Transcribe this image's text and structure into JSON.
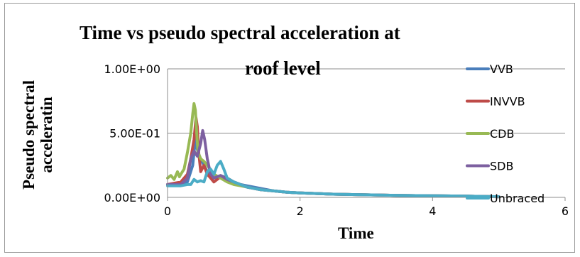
{
  "chart_data": {
    "type": "line",
    "title_line1": "Time vs pseudo spectral acceleration at",
    "title_line2": "roof level",
    "xlabel": "Time",
    "ylabel_line1": "Pseudo spectral",
    "ylabel_line2": "acceleratin",
    "xlim": [
      0,
      6
    ],
    "ylim": [
      0,
      1
    ],
    "x_ticks": [
      0,
      2,
      4,
      6
    ],
    "x_tick_labels": [
      "0",
      "2",
      "4",
      "6"
    ],
    "y_ticks": [
      0,
      0.5,
      1
    ],
    "y_tick_labels": [
      "0.00E+00",
      "5.00E-01",
      "1.00E+00"
    ],
    "grid": "horizontal",
    "legend_position": "right",
    "series": [
      {
        "name": "VVB",
        "color": "#4a7ebb",
        "x": [
          0,
          0.2,
          0.3,
          0.38,
          0.42,
          0.46,
          0.5,
          0.55,
          0.6,
          0.7,
          0.8,
          0.9,
          1.0,
          1.1,
          1.2,
          1.4,
          1.6,
          1.8,
          2.0,
          2.5,
          3.0,
          3.5,
          4.0,
          4.5,
          5.0
        ],
        "y": [
          0.1,
          0.1,
          0.12,
          0.25,
          0.45,
          0.35,
          0.3,
          0.25,
          0.2,
          0.15,
          0.17,
          0.15,
          0.12,
          0.1,
          0.09,
          0.07,
          0.05,
          0.04,
          0.035,
          0.025,
          0.02,
          0.015,
          0.012,
          0.01,
          0.005
        ]
      },
      {
        "name": "INVVB",
        "color": "#be4b48",
        "x": [
          0,
          0.2,
          0.3,
          0.35,
          0.4,
          0.43,
          0.45,
          0.47,
          0.5,
          0.55,
          0.6,
          0.65,
          0.7,
          0.8,
          0.9,
          1.0,
          1.1,
          1.2,
          1.4,
          1.6,
          1.8,
          2.0,
          2.5,
          3.0,
          3.5,
          4.0,
          4.5,
          5.0
        ],
        "y": [
          0.1,
          0.12,
          0.18,
          0.3,
          0.45,
          0.62,
          0.55,
          0.35,
          0.2,
          0.25,
          0.18,
          0.15,
          0.12,
          0.16,
          0.15,
          0.12,
          0.1,
          0.08,
          0.06,
          0.05,
          0.04,
          0.035,
          0.025,
          0.02,
          0.015,
          0.012,
          0.01,
          0.005
        ]
      },
      {
        "name": "CDB",
        "color": "#98b954",
        "x": [
          0,
          0.05,
          0.1,
          0.15,
          0.18,
          0.2,
          0.25,
          0.3,
          0.35,
          0.38,
          0.4,
          0.42,
          0.44,
          0.46,
          0.5,
          0.55,
          0.6,
          0.7,
          0.8,
          0.9,
          1.0,
          1.1,
          1.2,
          1.4,
          1.6,
          1.8,
          2.0,
          2.5,
          3.0,
          3.5,
          4.0,
          4.5,
          5.0
        ],
        "y": [
          0.15,
          0.17,
          0.14,
          0.2,
          0.16,
          0.18,
          0.22,
          0.35,
          0.5,
          0.65,
          0.73,
          0.68,
          0.5,
          0.35,
          0.3,
          0.28,
          0.25,
          0.18,
          0.15,
          0.12,
          0.1,
          0.09,
          0.08,
          0.06,
          0.05,
          0.04,
          0.035,
          0.025,
          0.02,
          0.015,
          0.012,
          0.01,
          0.005
        ]
      },
      {
        "name": "SDB",
        "color": "#7d60a0",
        "x": [
          0,
          0.2,
          0.3,
          0.35,
          0.4,
          0.45,
          0.5,
          0.53,
          0.56,
          0.6,
          0.65,
          0.7,
          0.8,
          0.9,
          1.0,
          1.1,
          1.2,
          1.4,
          1.6,
          1.8,
          2.0,
          2.5,
          3.0,
          3.5,
          4.0,
          4.5,
          5.0
        ],
        "y": [
          0.1,
          0.1,
          0.15,
          0.3,
          0.36,
          0.32,
          0.42,
          0.52,
          0.45,
          0.3,
          0.18,
          0.15,
          0.17,
          0.14,
          0.12,
          0.1,
          0.08,
          0.06,
          0.05,
          0.04,
          0.035,
          0.025,
          0.02,
          0.015,
          0.012,
          0.01,
          0.005
        ]
      },
      {
        "name": "Unbraced",
        "color": "#4bacc6",
        "x": [
          0,
          0.1,
          0.2,
          0.3,
          0.35,
          0.4,
          0.45,
          0.5,
          0.55,
          0.6,
          0.65,
          0.7,
          0.75,
          0.8,
          0.85,
          0.9,
          1.0,
          1.1,
          1.2,
          1.4,
          1.6,
          1.8,
          2.0,
          2.5,
          3.0,
          3.5,
          4.0,
          4.5,
          5.0
        ],
        "y": [
          0.09,
          0.09,
          0.09,
          0.1,
          0.1,
          0.14,
          0.12,
          0.13,
          0.12,
          0.2,
          0.22,
          0.18,
          0.25,
          0.28,
          0.22,
          0.15,
          0.12,
          0.1,
          0.08,
          0.06,
          0.05,
          0.04,
          0.035,
          0.025,
          0.02,
          0.015,
          0.012,
          0.01,
          0.005
        ]
      }
    ]
  }
}
